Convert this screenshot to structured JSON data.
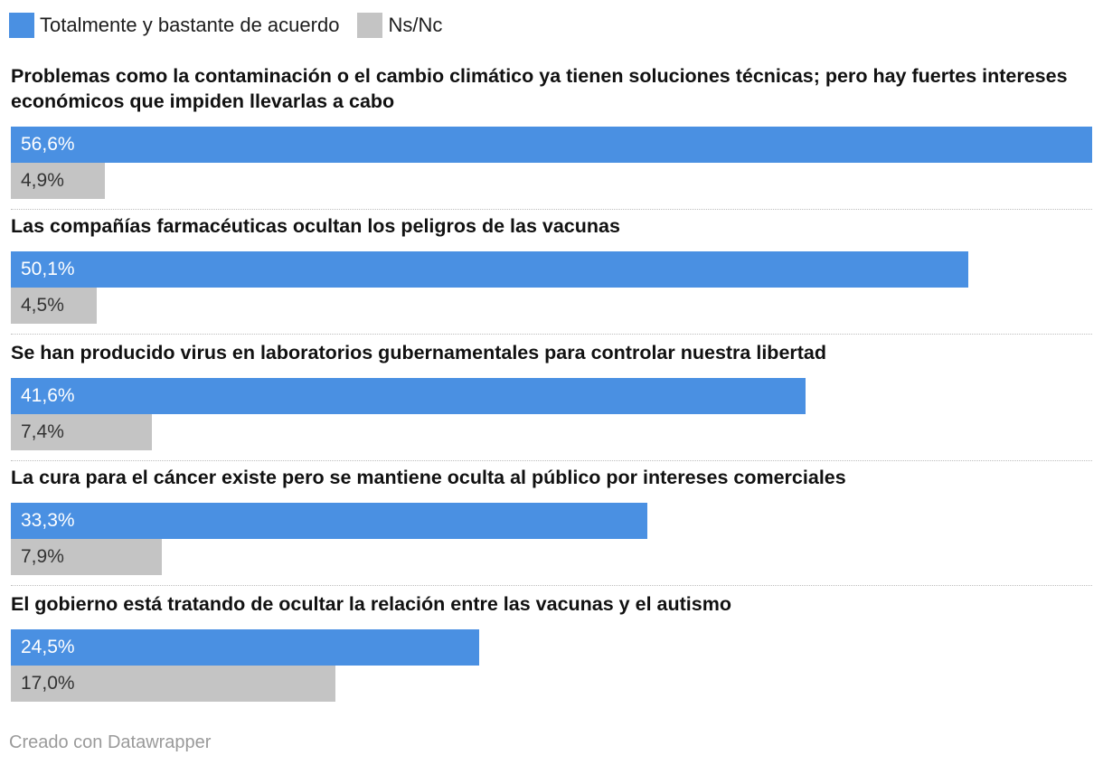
{
  "legend": [
    {
      "label": "Totalmente y bastante de acuerdo",
      "color": "#4a90e2"
    },
    {
      "label": "Ns/Nc",
      "color": "#c4c4c4"
    }
  ],
  "footer": "Creado con Datawrapper",
  "chart_data": {
    "type": "bar",
    "orientation": "horizontal",
    "title": "",
    "xlabel": "",
    "ylabel": "",
    "xlim": [
      0,
      56.6
    ],
    "grid": false,
    "legend_position": "top-left",
    "categories": [
      "Problemas como la contaminación o el cambio climático ya tienen soluciones técnicas; pero hay fuertes intereses económicos que impiden llevarlas a cabo",
      "Las compañías farmacéuticas ocultan los peligros de las vacunas",
      "Se han producido virus en laboratorios gubernamentales para controlar nuestra libertad",
      "La cura para el cáncer existe pero se mantiene oculta al público por intereses comerciales",
      "El gobierno está tratando de ocultar la relación entre las vacunas y el autismo"
    ],
    "series": [
      {
        "name": "Totalmente y bastante de acuerdo",
        "color": "#4a90e2",
        "values": [
          56.6,
          50.1,
          41.6,
          33.3,
          24.5
        ],
        "labels": [
          "56,6%",
          "50,1%",
          "41,6%",
          "33,3%",
          "24,5%"
        ]
      },
      {
        "name": "Ns/Nc",
        "color": "#c4c4c4",
        "values": [
          4.9,
          4.5,
          7.4,
          7.9,
          17.0
        ],
        "labels": [
          "4,9%",
          "4,5%",
          "7,4%",
          "7,9%",
          "17,0%"
        ]
      }
    ]
  }
}
